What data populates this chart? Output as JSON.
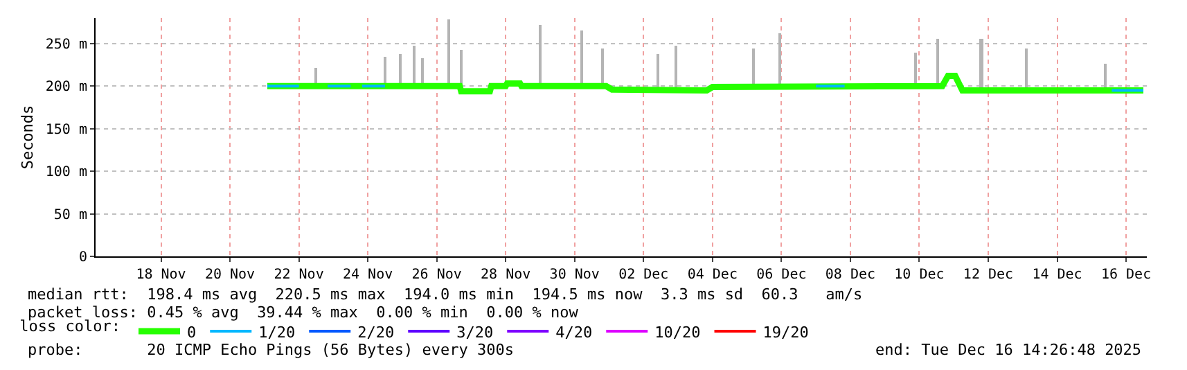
{
  "chart_data": {
    "type": "line",
    "ylabel": "Seconds",
    "xlim": [
      "2025-11-16T02:26",
      "2025-12-16T14:26"
    ],
    "xticks": [
      {
        "value": "2025-11-18",
        "label": "18 Nov"
      },
      {
        "value": "2025-11-20",
        "label": "20 Nov"
      },
      {
        "value": "2025-11-22",
        "label": "22 Nov"
      },
      {
        "value": "2025-11-24",
        "label": "24 Nov"
      },
      {
        "value": "2025-11-26",
        "label": "26 Nov"
      },
      {
        "value": "2025-11-28",
        "label": "28 Nov"
      },
      {
        "value": "2025-11-30",
        "label": "30 Nov"
      },
      {
        "value": "2025-12-02",
        "label": "02 Dec"
      },
      {
        "value": "2025-12-04",
        "label": "04 Dec"
      },
      {
        "value": "2025-12-06",
        "label": "06 Dec"
      },
      {
        "value": "2025-12-08",
        "label": "08 Dec"
      },
      {
        "value": "2025-12-10",
        "label": "10 Dec"
      },
      {
        "value": "2025-12-12",
        "label": "12 Dec"
      },
      {
        "value": "2025-12-14",
        "label": "14 Dec"
      },
      {
        "value": "2025-12-16",
        "label": "16 Dec"
      }
    ],
    "ylim": [
      0,
      280
    ],
    "yticks": [
      0,
      {
        "value": 50,
        "label": "50 m"
      },
      {
        "value": 100,
        "label": "100 m"
      },
      {
        "value": 150,
        "label": "150 m"
      },
      {
        "value": 200,
        "label": "200 m"
      },
      {
        "value": 250,
        "label": "250 m"
      }
    ],
    "grid": true,
    "legend": "bottom",
    "legend_title": "loss color:",
    "series": [
      {
        "type": "bar",
        "color": "#b4b4b4",
        "x": [
          "2025-11-22T12:00",
          "2025-11-24T12:00",
          "2025-11-24T22:30",
          "2025-11-25T08:00",
          "2025-11-25T13:40",
          "2025-11-26T08:00",
          "2025-11-26T16:50",
          "2025-11-29T00:00",
          "2025-11-30T04:50",
          "2025-11-30T19:00",
          "2025-12-02T09:40",
          "2025-12-02T22:50",
          "2025-12-05T04:50",
          "2025-12-05T22:30",
          "2025-12-09T21:40",
          "2025-12-10T13:10",
          "2025-12-11T19:10",
          "2025-12-13T02:20",
          "2025-12-15T09:40"
        ],
        "base": [
          200,
          200,
          200,
          200,
          200,
          200,
          194,
          200,
          200,
          197,
          196,
          196,
          199,
          199,
          200,
          200,
          195,
          195,
          195
        ],
        "values": [
          22,
          35,
          37,
          47,
          33,
          78,
          48,
          72,
          65,
          48,
          41,
          52,
          46,
          63,
          40,
          55,
          60,
          50,
          31
        ]
      },
      {
        "name": "0",
        "color": "#26ff00",
        "x": [
          "2025-11-21T02:00",
          "2025-11-26T16:00",
          "2025-11-26T17:00",
          "2025-11-27T13:00",
          "2025-11-27T14:00",
          "2025-11-28T00:00",
          "2025-11-28T01:00",
          "2025-11-28T10:00",
          "2025-11-28T11:00",
          "2025-11-30T22:00",
          "2025-12-01T02:00",
          "2025-12-03T20:00",
          "2025-12-04T00:00",
          "2025-12-10T16:00",
          "2025-12-10T20:00",
          "2025-12-11T01:00",
          "2025-12-11T06:00",
          "2025-12-11T10:00",
          "2025-12-16T12:00"
        ],
        "values": [
          200,
          200,
          194,
          194,
          200,
          200,
          203,
          203,
          200,
          200,
          196,
          195,
          199,
          200,
          212,
          212,
          195,
          195,
          195
        ]
      },
      {
        "name": "1/20",
        "color": "#00b8ff",
        "x": [
          "2025-11-21T02:00",
          "2025-11-22T00:00",
          null,
          "2025-11-22T20:00",
          "2025-11-23T12:00",
          null,
          "2025-11-23T20:00",
          "2025-11-24T12:00",
          null,
          "2025-12-07T00:00",
          "2025-12-07T20:00",
          null,
          "2025-12-15T14:00",
          "2025-12-16T12:00"
        ],
        "values": [
          200,
          200,
          null,
          200,
          200,
          null,
          200,
          200,
          null,
          200,
          200,
          null,
          195,
          195
        ]
      },
      {
        "name": "2/20",
        "color": "#0059ff"
      },
      {
        "name": "3/20",
        "color": "#5e00ff"
      },
      {
        "name": "4/20",
        "color": "#7e00ff"
      },
      {
        "name": "10/20",
        "color": "#dd00ff"
      },
      {
        "name": "19/20",
        "color": "#ff0000"
      }
    ],
    "annotations": [
      "median rtt:  198.4 ms avg  220.5 ms max  194.0 ms min  194.5 ms now  3.3 ms sd  60.3   am/s",
      "packet loss: 0.45 % avg  39.44 % max  0.00 % min  0.00 % now",
      "probe:       20 ICMP Echo Pings (56 Bytes) every 300s",
      "end: Tue Dec 16 14:26:48 2025"
    ]
  }
}
